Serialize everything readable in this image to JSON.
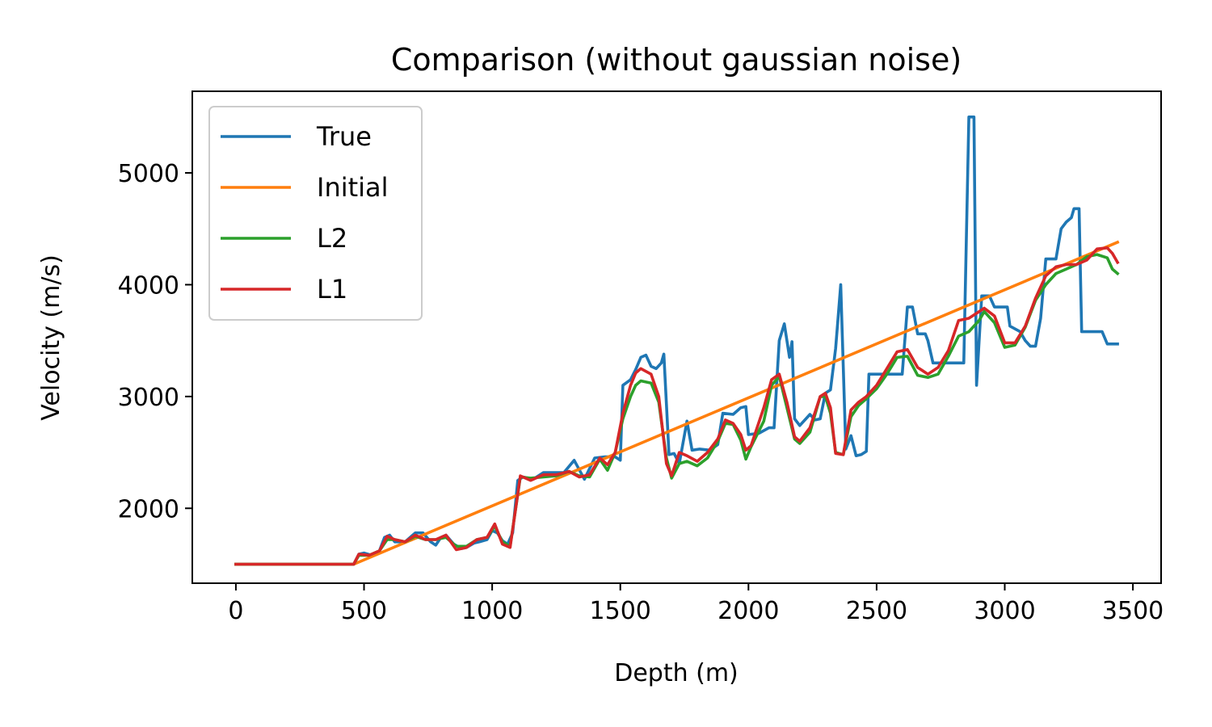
{
  "chart_data": {
    "type": "line",
    "title": "Comparison (without gaussian noise)",
    "xlabel": "Depth (m)",
    "ylabel": "Velocity (m/s)",
    "xlim": [
      -170,
      3610
    ],
    "ylim": [
      1330,
      5730
    ],
    "xticks": [
      0,
      500,
      1000,
      1500,
      2000,
      2500,
      3000,
      3500
    ],
    "yticks": [
      2000,
      3000,
      4000,
      5000
    ],
    "grid": false,
    "legend_position": "top-left",
    "series": [
      {
        "name": "True",
        "color": "#1f77b4",
        "points": [
          [
            0,
            1500
          ],
          [
            460,
            1500
          ],
          [
            480,
            1590
          ],
          [
            500,
            1600
          ],
          [
            530,
            1580
          ],
          [
            560,
            1620
          ],
          [
            580,
            1740
          ],
          [
            600,
            1760
          ],
          [
            620,
            1700
          ],
          [
            660,
            1700
          ],
          [
            700,
            1780
          ],
          [
            730,
            1780
          ],
          [
            760,
            1700
          ],
          [
            780,
            1670
          ],
          [
            800,
            1740
          ],
          [
            820,
            1760
          ],
          [
            850,
            1680
          ],
          [
            880,
            1640
          ],
          [
            900,
            1650
          ],
          [
            930,
            1690
          ],
          [
            950,
            1700
          ],
          [
            980,
            1720
          ],
          [
            1000,
            1800
          ],
          [
            1020,
            1780
          ],
          [
            1040,
            1710
          ],
          [
            1060,
            1680
          ],
          [
            1080,
            1780
          ],
          [
            1100,
            2250
          ],
          [
            1120,
            2280
          ],
          [
            1160,
            2260
          ],
          [
            1200,
            2320
          ],
          [
            1240,
            2320
          ],
          [
            1280,
            2320
          ],
          [
            1320,
            2430
          ],
          [
            1360,
            2260
          ],
          [
            1400,
            2450
          ],
          [
            1440,
            2460
          ],
          [
            1480,
            2460
          ],
          [
            1500,
            2430
          ],
          [
            1510,
            3100
          ],
          [
            1540,
            3150
          ],
          [
            1560,
            3240
          ],
          [
            1580,
            3350
          ],
          [
            1600,
            3370
          ],
          [
            1620,
            3270
          ],
          [
            1640,
            3250
          ],
          [
            1660,
            3300
          ],
          [
            1670,
            3380
          ],
          [
            1690,
            2480
          ],
          [
            1710,
            2490
          ],
          [
            1730,
            2400
          ],
          [
            1760,
            2780
          ],
          [
            1780,
            2520
          ],
          [
            1810,
            2530
          ],
          [
            1850,
            2520
          ],
          [
            1880,
            2570
          ],
          [
            1900,
            2850
          ],
          [
            1940,
            2840
          ],
          [
            1970,
            2900
          ],
          [
            1990,
            2910
          ],
          [
            2000,
            2660
          ],
          [
            2040,
            2670
          ],
          [
            2080,
            2720
          ],
          [
            2100,
            2720
          ],
          [
            2120,
            3500
          ],
          [
            2140,
            3650
          ],
          [
            2160,
            3350
          ],
          [
            2170,
            3490
          ],
          [
            2180,
            2800
          ],
          [
            2200,
            2740
          ],
          [
            2240,
            2840
          ],
          [
            2260,
            2790
          ],
          [
            2280,
            2800
          ],
          [
            2300,
            3030
          ],
          [
            2320,
            3060
          ],
          [
            2340,
            3430
          ],
          [
            2360,
            4000
          ],
          [
            2380,
            2530
          ],
          [
            2400,
            2650
          ],
          [
            2420,
            2470
          ],
          [
            2440,
            2480
          ],
          [
            2460,
            2510
          ],
          [
            2470,
            3200
          ],
          [
            2500,
            3200
          ],
          [
            2520,
            3200
          ],
          [
            2600,
            3200
          ],
          [
            2620,
            3800
          ],
          [
            2640,
            3800
          ],
          [
            2660,
            3560
          ],
          [
            2690,
            3560
          ],
          [
            2700,
            3500
          ],
          [
            2720,
            3300
          ],
          [
            2760,
            3300
          ],
          [
            2800,
            3300
          ],
          [
            2840,
            3300
          ],
          [
            2860,
            5500
          ],
          [
            2880,
            5500
          ],
          [
            2890,
            3100
          ],
          [
            2910,
            3900
          ],
          [
            2940,
            3900
          ],
          [
            2960,
            3800
          ],
          [
            3000,
            3800
          ],
          [
            3010,
            3800
          ],
          [
            3020,
            3630
          ],
          [
            3060,
            3580
          ],
          [
            3080,
            3500
          ],
          [
            3100,
            3450
          ],
          [
            3120,
            3450
          ],
          [
            3140,
            3700
          ],
          [
            3160,
            4230
          ],
          [
            3180,
            4230
          ],
          [
            3200,
            4230
          ],
          [
            3220,
            4500
          ],
          [
            3240,
            4560
          ],
          [
            3260,
            4600
          ],
          [
            3270,
            4680
          ],
          [
            3290,
            4680
          ],
          [
            3300,
            3580
          ],
          [
            3340,
            3580
          ],
          [
            3380,
            3580
          ],
          [
            3400,
            3470
          ],
          [
            3440,
            3470
          ]
        ]
      },
      {
        "name": "Initial",
        "color": "#ff7f0e",
        "points": [
          [
            0,
            1500
          ],
          [
            460,
            1500
          ],
          [
            3440,
            4380
          ]
        ]
      },
      {
        "name": "L2",
        "color": "#2ca02c",
        "points": [
          [
            0,
            1500
          ],
          [
            460,
            1500
          ],
          [
            480,
            1580
          ],
          [
            520,
            1580
          ],
          [
            560,
            1620
          ],
          [
            590,
            1720
          ],
          [
            620,
            1720
          ],
          [
            660,
            1700
          ],
          [
            700,
            1750
          ],
          [
            740,
            1720
          ],
          [
            780,
            1720
          ],
          [
            820,
            1740
          ],
          [
            860,
            1660
          ],
          [
            900,
            1660
          ],
          [
            940,
            1720
          ],
          [
            980,
            1740
          ],
          [
            1010,
            1840
          ],
          [
            1040,
            1700
          ],
          [
            1070,
            1660
          ],
          [
            1110,
            2280
          ],
          [
            1150,
            2270
          ],
          [
            1200,
            2280
          ],
          [
            1250,
            2290
          ],
          [
            1300,
            2330
          ],
          [
            1340,
            2290
          ],
          [
            1380,
            2280
          ],
          [
            1420,
            2440
          ],
          [
            1450,
            2340
          ],
          [
            1480,
            2500
          ],
          [
            1510,
            2800
          ],
          [
            1540,
            3000
          ],
          [
            1560,
            3100
          ],
          [
            1580,
            3140
          ],
          [
            1620,
            3120
          ],
          [
            1650,
            2950
          ],
          [
            1680,
            2450
          ],
          [
            1700,
            2270
          ],
          [
            1730,
            2400
          ],
          [
            1760,
            2420
          ],
          [
            1800,
            2380
          ],
          [
            1840,
            2450
          ],
          [
            1880,
            2600
          ],
          [
            1910,
            2760
          ],
          [
            1940,
            2750
          ],
          [
            1970,
            2610
          ],
          [
            1990,
            2440
          ],
          [
            2010,
            2550
          ],
          [
            2060,
            2780
          ],
          [
            2090,
            3100
          ],
          [
            2120,
            3180
          ],
          [
            2150,
            2900
          ],
          [
            2180,
            2620
          ],
          [
            2200,
            2580
          ],
          [
            2240,
            2680
          ],
          [
            2280,
            3000
          ],
          [
            2300,
            3000
          ],
          [
            2320,
            2850
          ],
          [
            2340,
            2500
          ],
          [
            2370,
            2480
          ],
          [
            2400,
            2820
          ],
          [
            2430,
            2920
          ],
          [
            2460,
            2980
          ],
          [
            2500,
            3070
          ],
          [
            2540,
            3200
          ],
          [
            2580,
            3350
          ],
          [
            2620,
            3360
          ],
          [
            2660,
            3190
          ],
          [
            2700,
            3170
          ],
          [
            2740,
            3200
          ],
          [
            2780,
            3360
          ],
          [
            2820,
            3540
          ],
          [
            2860,
            3580
          ],
          [
            2900,
            3680
          ],
          [
            2920,
            3760
          ],
          [
            2960,
            3660
          ],
          [
            3000,
            3440
          ],
          [
            3040,
            3460
          ],
          [
            3080,
            3620
          ],
          [
            3120,
            3860
          ],
          [
            3160,
            4000
          ],
          [
            3200,
            4100
          ],
          [
            3240,
            4140
          ],
          [
            3280,
            4180
          ],
          [
            3320,
            4250
          ],
          [
            3360,
            4270
          ],
          [
            3400,
            4240
          ],
          [
            3420,
            4140
          ],
          [
            3440,
            4100
          ]
        ]
      },
      {
        "name": "L1",
        "color": "#d62728",
        "points": [
          [
            0,
            1500
          ],
          [
            460,
            1500
          ],
          [
            480,
            1590
          ],
          [
            520,
            1580
          ],
          [
            560,
            1620
          ],
          [
            590,
            1750
          ],
          [
            620,
            1720
          ],
          [
            660,
            1700
          ],
          [
            700,
            1760
          ],
          [
            740,
            1720
          ],
          [
            780,
            1720
          ],
          [
            820,
            1760
          ],
          [
            860,
            1630
          ],
          [
            900,
            1650
          ],
          [
            940,
            1720
          ],
          [
            980,
            1740
          ],
          [
            1010,
            1860
          ],
          [
            1040,
            1680
          ],
          [
            1070,
            1650
          ],
          [
            1110,
            2290
          ],
          [
            1150,
            2250
          ],
          [
            1200,
            2300
          ],
          [
            1250,
            2300
          ],
          [
            1300,
            2330
          ],
          [
            1340,
            2280
          ],
          [
            1380,
            2300
          ],
          [
            1420,
            2450
          ],
          [
            1450,
            2390
          ],
          [
            1480,
            2500
          ],
          [
            1510,
            2850
          ],
          [
            1540,
            3100
          ],
          [
            1560,
            3210
          ],
          [
            1580,
            3250
          ],
          [
            1620,
            3200
          ],
          [
            1650,
            3000
          ],
          [
            1680,
            2400
          ],
          [
            1700,
            2290
          ],
          [
            1730,
            2500
          ],
          [
            1760,
            2470
          ],
          [
            1800,
            2420
          ],
          [
            1840,
            2500
          ],
          [
            1880,
            2620
          ],
          [
            1910,
            2790
          ],
          [
            1940,
            2760
          ],
          [
            1970,
            2660
          ],
          [
            1990,
            2520
          ],
          [
            2010,
            2560
          ],
          [
            2060,
            2900
          ],
          [
            2090,
            3150
          ],
          [
            2120,
            3200
          ],
          [
            2150,
            2950
          ],
          [
            2180,
            2640
          ],
          [
            2200,
            2600
          ],
          [
            2240,
            2720
          ],
          [
            2280,
            3000
          ],
          [
            2300,
            3030
          ],
          [
            2320,
            2900
          ],
          [
            2340,
            2490
          ],
          [
            2370,
            2480
          ],
          [
            2400,
            2880
          ],
          [
            2430,
            2950
          ],
          [
            2460,
            3000
          ],
          [
            2500,
            3100
          ],
          [
            2540,
            3250
          ],
          [
            2580,
            3400
          ],
          [
            2620,
            3420
          ],
          [
            2660,
            3260
          ],
          [
            2700,
            3200
          ],
          [
            2740,
            3260
          ],
          [
            2780,
            3410
          ],
          [
            2820,
            3680
          ],
          [
            2860,
            3700
          ],
          [
            2900,
            3760
          ],
          [
            2920,
            3790
          ],
          [
            2960,
            3720
          ],
          [
            3000,
            3480
          ],
          [
            3040,
            3480
          ],
          [
            3080,
            3630
          ],
          [
            3120,
            3880
          ],
          [
            3160,
            4080
          ],
          [
            3200,
            4160
          ],
          [
            3240,
            4180
          ],
          [
            3280,
            4180
          ],
          [
            3320,
            4220
          ],
          [
            3360,
            4320
          ],
          [
            3400,
            4330
          ],
          [
            3420,
            4280
          ],
          [
            3440,
            4200
          ]
        ]
      }
    ]
  }
}
